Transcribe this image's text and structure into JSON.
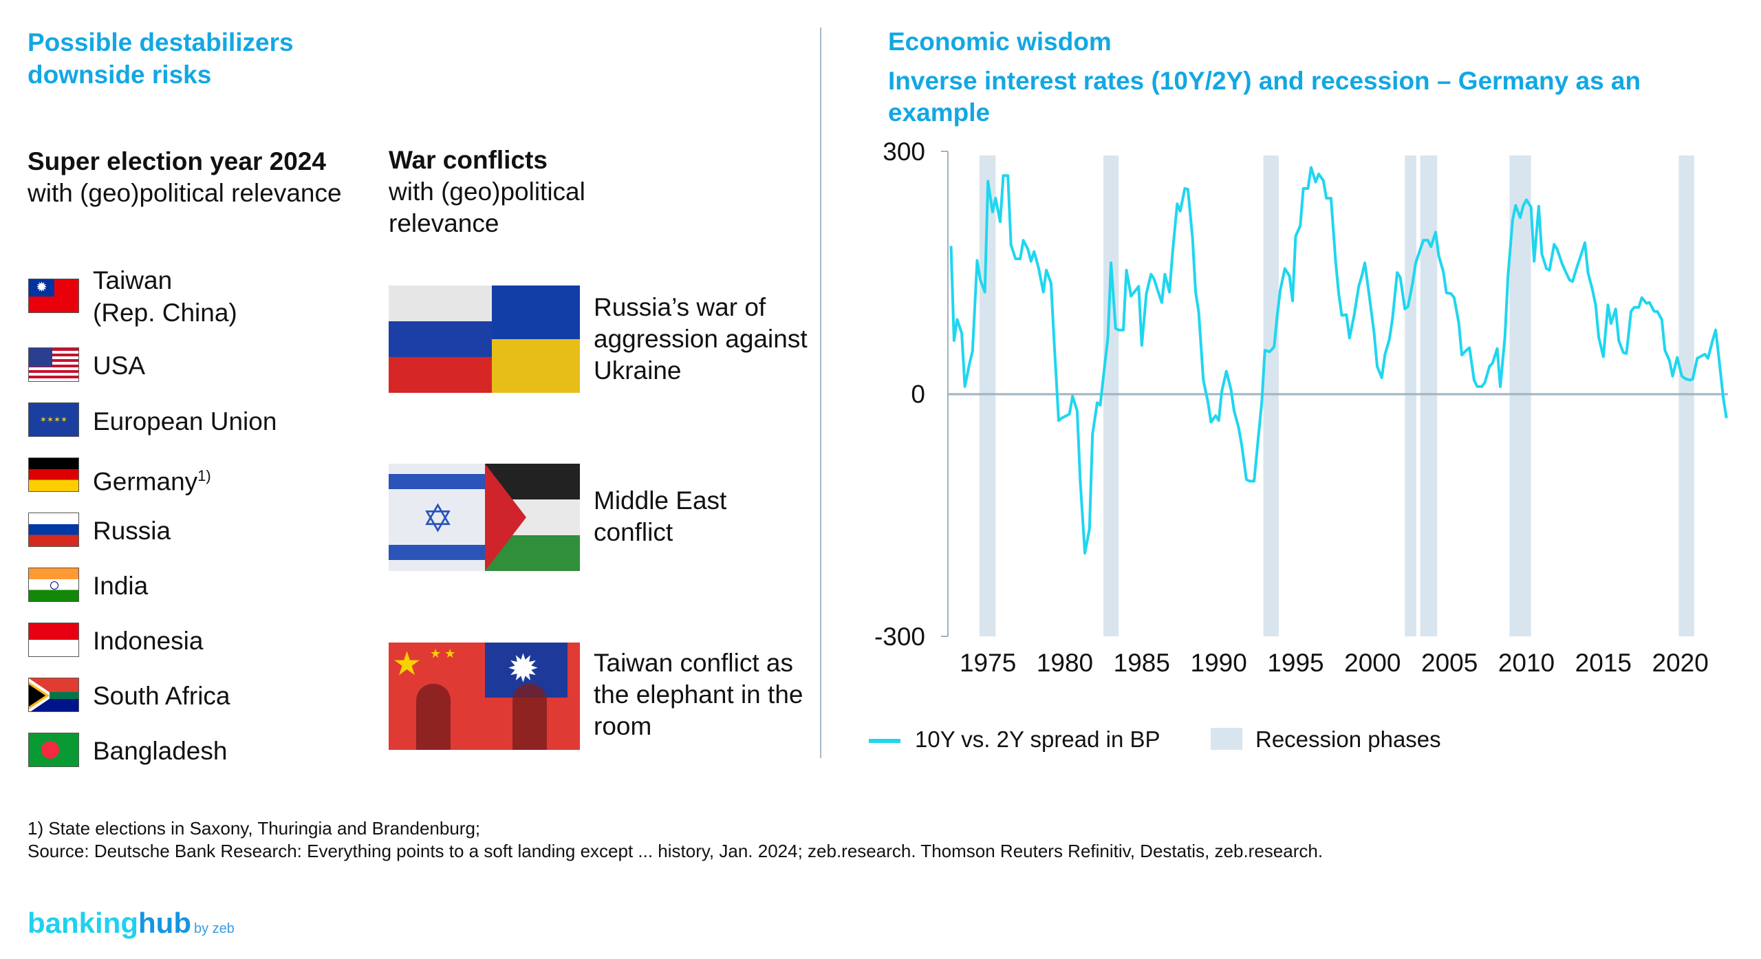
{
  "left": {
    "title_line1": "Possible destabilizers",
    "title_line2": "downside risks",
    "elections": {
      "heading": "Super election year 2024",
      "subheading": "with (geo)political relevance",
      "countries": [
        {
          "name": "Taiwan",
          "name2": "(Rep. China)",
          "flag": "taiwan-flag"
        },
        {
          "name": "USA",
          "flag": "usa-flag"
        },
        {
          "name": "European Union",
          "flag": "eu-flag"
        },
        {
          "name": "Germany",
          "sup": "1)",
          "flag": "germany-flag"
        },
        {
          "name": "Russia",
          "flag": "russia-flag"
        },
        {
          "name": "India",
          "flag": "india-flag"
        },
        {
          "name": "Indonesia",
          "flag": "indonesia-flag"
        },
        {
          "name": "South Africa",
          "flag": "south-africa-flag"
        },
        {
          "name": "Bangladesh",
          "flag": "bangladesh-flag"
        }
      ]
    },
    "wars": {
      "heading": "War conflicts",
      "subheading": "with (geo)political relevance",
      "items": [
        {
          "text": "Russia’s war of aggression against Ukraine",
          "image": "russia-ukraine-flags"
        },
        {
          "text": "Middle East conflict",
          "image": "israel-palestine-flags"
        },
        {
          "text": "Taiwan conflict as the elephant in the room",
          "image": "china-taiwan-flags"
        }
      ]
    }
  },
  "right": {
    "title": "Economic wisdom",
    "subtitle": "Inverse interest rates (10Y/2Y) and recession – Germany as an example"
  },
  "chart_data": {
    "type": "line",
    "title": "Inverse interest rates (10Y/2Y) and recession – Germany as an example",
    "xlabel": "",
    "ylabel": "",
    "ylim": [
      -300,
      300
    ],
    "yticks": [
      "300",
      "0",
      "-300"
    ],
    "xticks": [
      "1975",
      "1980",
      "1985",
      "1990",
      "1995",
      "2000",
      "2005",
      "2010",
      "2015",
      "2020"
    ],
    "xlim": [
      1972.4,
      2023.1
    ],
    "legend": {
      "position": "bottom-left",
      "series_label": "10Y vs. 2Y spread in BP",
      "band_label": "Recession phases"
    },
    "colors": {
      "line": "#1fd6ef",
      "band": "#d9e5ee",
      "axis": "#9fb3c0"
    },
    "recessions": [
      [
        1974.45,
        1975.5
      ],
      [
        1982.5,
        1983.5
      ],
      [
        1992.9,
        1993.9
      ],
      [
        2002.1,
        2002.85
      ],
      [
        2003.1,
        2004.2
      ],
      [
        2008.9,
        2010.3
      ],
      [
        2019.9,
        2020.9
      ]
    ],
    "series": [
      {
        "name": "10Y vs. 2Y spread in BP",
        "points": [
          [
            1972.6,
            183
          ],
          [
            1972.8,
            66
          ],
          [
            1973.0,
            92
          ],
          [
            1973.3,
            75
          ],
          [
            1973.5,
            9
          ],
          [
            1973.8,
            37
          ],
          [
            1974.0,
            53
          ],
          [
            1974.3,
            165
          ],
          [
            1974.5,
            141
          ],
          [
            1974.8,
            126
          ],
          [
            1975.0,
            263
          ],
          [
            1975.3,
            225
          ],
          [
            1975.5,
            242
          ],
          [
            1975.8,
            213
          ],
          [
            1976.0,
            270
          ],
          [
            1976.3,
            270
          ],
          [
            1976.5,
            184
          ],
          [
            1976.8,
            167
          ],
          [
            1977.1,
            167
          ],
          [
            1977.3,
            190
          ],
          [
            1977.6,
            179
          ],
          [
            1977.8,
            164
          ],
          [
            1978.0,
            176
          ],
          [
            1978.3,
            155
          ],
          [
            1978.6,
            126
          ],
          [
            1978.8,
            153
          ],
          [
            1979.1,
            137
          ],
          [
            1979.3,
            66
          ],
          [
            1979.6,
            -33
          ],
          [
            1979.8,
            -30
          ],
          [
            1980.1,
            -27
          ],
          [
            1980.3,
            -25
          ],
          [
            1980.5,
            -3
          ],
          [
            1980.8,
            -21
          ],
          [
            1981.0,
            -108
          ],
          [
            1981.3,
            -197
          ],
          [
            1981.6,
            -167
          ],
          [
            1981.8,
            -50
          ],
          [
            1982.1,
            -11
          ],
          [
            1982.3,
            -14
          ],
          [
            1982.5,
            20
          ],
          [
            1982.8,
            70
          ],
          [
            1983.0,
            162
          ],
          [
            1983.3,
            81
          ],
          [
            1983.5,
            79
          ],
          [
            1983.8,
            79
          ],
          [
            1984.0,
            153
          ],
          [
            1984.3,
            121
          ],
          [
            1984.6,
            128
          ],
          [
            1984.8,
            133
          ],
          [
            1985.0,
            60
          ],
          [
            1985.3,
            124
          ],
          [
            1985.6,
            148
          ],
          [
            1985.8,
            142
          ],
          [
            1986.0,
            130
          ],
          [
            1986.3,
            113
          ],
          [
            1986.5,
            148
          ],
          [
            1986.8,
            126
          ],
          [
            1987.0,
            175
          ],
          [
            1987.3,
            235
          ],
          [
            1987.5,
            226
          ],
          [
            1987.8,
            254
          ],
          [
            1988.0,
            253
          ],
          [
            1988.3,
            193
          ],
          [
            1988.5,
            126
          ],
          [
            1988.7,
            101
          ],
          [
            1989.0,
            17
          ],
          [
            1989.3,
            -10
          ],
          [
            1989.5,
            -35
          ],
          [
            1989.8,
            -27
          ],
          [
            1990.0,
            -33
          ],
          [
            1990.2,
            3
          ],
          [
            1990.5,
            28
          ],
          [
            1990.8,
            5
          ],
          [
            1991.0,
            -21
          ],
          [
            1991.3,
            -42
          ],
          [
            1991.5,
            -64
          ],
          [
            1991.8,
            -106
          ],
          [
            1992.0,
            -108
          ],
          [
            1992.3,
            -108
          ],
          [
            1992.5,
            -68
          ],
          [
            1992.8,
            -10
          ],
          [
            1993.0,
            54
          ],
          [
            1993.3,
            52
          ],
          [
            1993.6,
            58
          ],
          [
            1993.8,
            97
          ],
          [
            1994.0,
            128
          ],
          [
            1994.3,
            155
          ],
          [
            1994.6,
            146
          ],
          [
            1994.8,
            115
          ],
          [
            1995.0,
            195
          ],
          [
            1995.3,
            208
          ],
          [
            1995.5,
            254
          ],
          [
            1995.8,
            254
          ],
          [
            1996.0,
            280
          ],
          [
            1996.3,
            262
          ],
          [
            1996.5,
            272
          ],
          [
            1996.8,
            264
          ],
          [
            1997.0,
            242
          ],
          [
            1997.3,
            242
          ],
          [
            1997.6,
            164
          ],
          [
            1997.8,
            124
          ],
          [
            1998.0,
            97
          ],
          [
            1998.3,
            98
          ],
          [
            1998.5,
            69
          ],
          [
            1998.8,
            97
          ],
          [
            1999.1,
            133
          ],
          [
            1999.3,
            146
          ],
          [
            1999.5,
            162
          ],
          [
            1999.8,
            119
          ],
          [
            2000.1,
            75
          ],
          [
            2000.3,
            34
          ],
          [
            2000.6,
            20
          ],
          [
            2000.8,
            48
          ],
          [
            2001.1,
            68
          ],
          [
            2001.3,
            94
          ],
          [
            2001.6,
            150
          ],
          [
            2001.8,
            144
          ],
          [
            2002.1,
            105
          ],
          [
            2002.3,
            108
          ],
          [
            2002.6,
            137
          ],
          [
            2002.8,
            162
          ],
          [
            2003.1,
            179
          ],
          [
            2003.3,
            190
          ],
          [
            2003.6,
            190
          ],
          [
            2003.8,
            182
          ],
          [
            2004.1,
            200
          ],
          [
            2004.3,
            171
          ],
          [
            2004.6,
            151
          ],
          [
            2004.8,
            125
          ],
          [
            2005.1,
            124
          ],
          [
            2005.3,
            119
          ],
          [
            2005.6,
            88
          ],
          [
            2005.8,
            48
          ],
          [
            2006.1,
            54
          ],
          [
            2006.3,
            57
          ],
          [
            2006.6,
            17
          ],
          [
            2006.8,
            9
          ],
          [
            2007.1,
            9
          ],
          [
            2007.3,
            14
          ],
          [
            2007.6,
            34
          ],
          [
            2007.8,
            38
          ],
          [
            2008.1,
            56
          ],
          [
            2008.3,
            9
          ],
          [
            2008.6,
            70
          ],
          [
            2008.8,
            146
          ],
          [
            2009.1,
            215
          ],
          [
            2009.3,
            233
          ],
          [
            2009.6,
            218
          ],
          [
            2009.8,
            233
          ],
          [
            2010.0,
            240
          ],
          [
            2010.3,
            231
          ],
          [
            2010.5,
            164
          ],
          [
            2010.8,
            232
          ],
          [
            2011.0,
            173
          ],
          [
            2011.3,
            155
          ],
          [
            2011.5,
            153
          ],
          [
            2011.8,
            185
          ],
          [
            2012.0,
            179
          ],
          [
            2012.3,
            162
          ],
          [
            2012.5,
            153
          ],
          [
            2012.8,
            141
          ],
          [
            2013.0,
            139
          ],
          [
            2013.3,
            158
          ],
          [
            2013.5,
            169
          ],
          [
            2013.8,
            187
          ],
          [
            2014.0,
            150
          ],
          [
            2014.3,
            128
          ],
          [
            2014.5,
            110
          ],
          [
            2014.7,
            70
          ],
          [
            2015.0,
            46
          ],
          [
            2015.3,
            110
          ],
          [
            2015.5,
            87
          ],
          [
            2015.8,
            105
          ],
          [
            2016.0,
            66
          ],
          [
            2016.3,
            51
          ],
          [
            2016.5,
            50
          ],
          [
            2016.8,
            102
          ],
          [
            2017.0,
            107
          ],
          [
            2017.3,
            107
          ],
          [
            2017.5,
            119
          ],
          [
            2017.8,
            112
          ],
          [
            2018.0,
            113
          ],
          [
            2018.3,
            102
          ],
          [
            2018.5,
            102
          ],
          [
            2018.8,
            92
          ],
          [
            2019.0,
            54
          ],
          [
            2019.3,
            41
          ],
          [
            2019.5,
            22
          ],
          [
            2019.8,
            45
          ],
          [
            2020.1,
            22
          ],
          [
            2020.3,
            19
          ],
          [
            2020.6,
            17
          ],
          [
            2020.8,
            18
          ],
          [
            2021.1,
            44
          ],
          [
            2021.3,
            46
          ],
          [
            2021.6,
            49
          ],
          [
            2021.8,
            44
          ],
          [
            2022.1,
            66
          ],
          [
            2022.3,
            79
          ],
          [
            2022.5,
            46
          ],
          [
            2022.8,
            -6
          ],
          [
            2023.0,
            -30
          ]
        ]
      }
    ]
  },
  "footer": {
    "note": "1) State elections in Saxony, Thuringia and Brandenburg;",
    "source": "Source: Deutsche Bank Research: Everything points to a soft landing except ... history, Jan. 2024; zeb.research. Thomson Reuters Refinitiv, Destatis, zeb.research.",
    "logo_main1": "banking",
    "logo_main2": "hub",
    "logo_by": "by zeb"
  }
}
